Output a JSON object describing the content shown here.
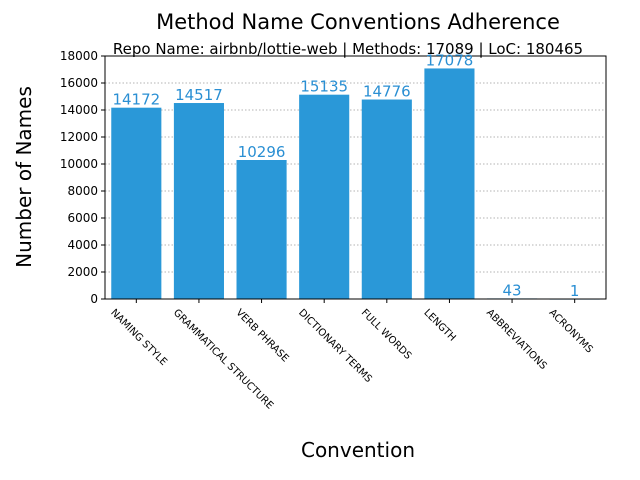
{
  "chart_data": {
    "type": "bar",
    "title": "Method Name Conventions Adherence",
    "subtitle": "Repo Name: airbnb/lottie-web | Methods: 17089 | LoC: 180465",
    "xlabel": "Convention",
    "ylabel": "Number of Names",
    "categories": [
      "NAMING STYLE",
      "GRAMMATICAL STRUCTURE",
      "VERB PHRASE",
      "DICTIONARY TERMS",
      "FULL WORDS",
      "LENGTH",
      "ABBREVIATIONS",
      "ACRONYMS"
    ],
    "values": [
      14172,
      14517,
      10296,
      15135,
      14776,
      17078,
      43,
      1
    ],
    "value_labels": [
      "14172",
      "14517",
      "10296",
      "15135",
      "14776",
      "17078",
      "43",
      "1"
    ],
    "ylim": [
      0,
      18000
    ],
    "yticks": [
      0,
      2000,
      4000,
      6000,
      8000,
      10000,
      12000,
      14000,
      16000,
      18000
    ],
    "ytick_labels": [
      "0",
      "2000",
      "4000",
      "6000",
      "8000",
      "10000",
      "12000",
      "14000",
      "16000",
      "18000"
    ],
    "grid": "y-dotted",
    "bar_color": "#2a98d8",
    "label_color": "#2a8fd3"
  }
}
